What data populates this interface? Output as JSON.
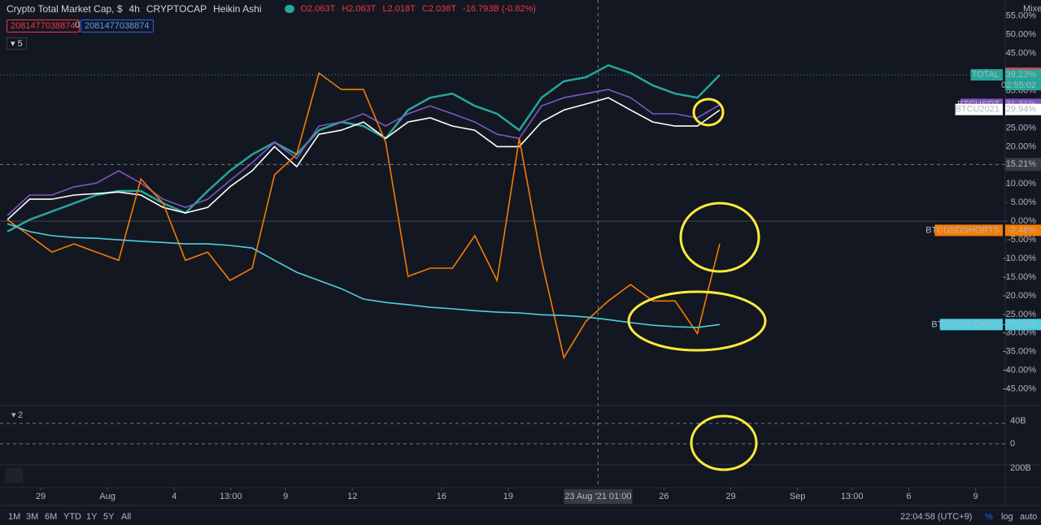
{
  "header": {
    "symbol": "Crypto Total Market Cap, $",
    "interval": "4h",
    "exchange": "CRYPTOCAP",
    "chart_style": "Heikin Ashi",
    "ohlc": [
      "O2.063T",
      "H2.063T",
      "L2.018T",
      "C2.038T"
    ],
    "change": "-16.793B (-0.82%)",
    "inputs": [
      "2081477038874",
      "0",
      "2081477038874"
    ],
    "indicator_count": "5",
    "scale_mode": "Mixed"
  },
  "chart_data": {
    "type": "line",
    "x": [
      -1.5,
      -0.5,
      0.5,
      1.5,
      2.5,
      3.5,
      4.5,
      5.5,
      6.5,
      7.5,
      8.5,
      9.5,
      10.5,
      11.5,
      12.5,
      13.5,
      14.5,
      15.5,
      16.5,
      17.5,
      18.5,
      19.5,
      20.5,
      21.5,
      22.5,
      23.5,
      24.5,
      25.5,
      26.5,
      27.5,
      28.5,
      29.5,
      30.5
    ],
    "xlim": [
      -1.83,
      43.33
    ],
    "xticks": [
      {
        "value": 0,
        "label": "29"
      },
      {
        "value": 3,
        "label": "Aug"
      },
      {
        "value": 6,
        "label": "4"
      },
      {
        "value": 8.54,
        "label": "13:00"
      },
      {
        "value": 11,
        "label": "9"
      },
      {
        "value": 14,
        "label": "12"
      },
      {
        "value": 18,
        "label": "16"
      },
      {
        "value": 21,
        "label": "19"
      },
      {
        "value": 28,
        "label": "26"
      },
      {
        "value": 31,
        "label": "29"
      },
      {
        "value": 34,
        "label": "Sep"
      },
      {
        "value": 36.45,
        "label": "13:00"
      },
      {
        "value": 39,
        "label": "6"
      },
      {
        "value": 42,
        "label": "9"
      }
    ],
    "crosshair_x": {
      "value": 25.04,
      "label": "23 Aug '21   01:00"
    },
    "crosshair_y": {
      "value": 15.21,
      "label": "15.21%"
    },
    "ylim": [
      -49,
      59.3
    ],
    "yticks": [
      {
        "value": 55,
        "label": "55.00%"
      },
      {
        "value": 50,
        "label": "50.00%"
      },
      {
        "value": 45,
        "label": "45.00%"
      },
      {
        "value": 40,
        "label": "40.00%"
      },
      {
        "value": 35,
        "label": "35.00%"
      },
      {
        "value": 30,
        "label": "30.00%"
      },
      {
        "value": 25,
        "label": "25.00%"
      },
      {
        "value": 20,
        "label": "20.00%"
      },
      {
        "value": 15,
        "label": "15.00%"
      },
      {
        "value": 10,
        "label": "10.00%"
      },
      {
        "value": 5,
        "label": "5.00%"
      },
      {
        "value": 0,
        "label": "0.00%"
      },
      {
        "value": -5,
        "label": "-5.00%"
      },
      {
        "value": -10,
        "label": "-10.00%"
      },
      {
        "value": -15,
        "label": "-15.00%"
      },
      {
        "value": -20,
        "label": "-20.00%"
      },
      {
        "value": -25,
        "label": "-25.00%"
      },
      {
        "value": -30,
        "label": "-30.00%"
      },
      {
        "value": -35,
        "label": "-35.00%"
      },
      {
        "value": -40,
        "label": "-40.00%"
      },
      {
        "value": -45,
        "label": "-45.00%"
      }
    ],
    "high_tag": {
      "value": 39.67,
      "label": "39.67%",
      "color": "#f23645"
    },
    "countdown": "02:55:02",
    "series": [
      {
        "name": "TOTAL",
        "color": "#26a69a",
        "tag": {
          "value": 39.23,
          "label": "39.23%"
        },
        "values": [
          -2.8,
          0.4,
          2.6,
          4.8,
          7.0,
          8.1,
          8.1,
          4.8,
          2.2,
          8.1,
          13.5,
          17.9,
          21.1,
          17.9,
          24.4,
          26.6,
          25.5,
          22.2,
          29.8,
          33.1,
          34.2,
          30.9,
          28.8,
          24.4,
          33.1,
          37.5,
          38.6,
          41.8,
          39.7,
          36.4,
          34.2,
          33.1,
          39.2
        ]
      },
      {
        "name": "BTCUSDT",
        "color": "#7e57c2",
        "tag": {
          "value": 31.31,
          "label": "31.31%"
        },
        "values": [
          1.5,
          7.0,
          7.0,
          9.2,
          10.2,
          13.5,
          10.2,
          5.9,
          3.7,
          5.9,
          10.9,
          15.7,
          21.1,
          16.8,
          25.5,
          26.6,
          28.8,
          25.5,
          28.8,
          30.9,
          28.8,
          26.6,
          23.3,
          22.2,
          30.9,
          33.1,
          34.2,
          35.3,
          33.1,
          28.8,
          28.8,
          27.7,
          31.2
        ]
      },
      {
        "name": "BTCU2021",
        "color": "#ffffff",
        "tag": {
          "value": 29.94,
          "label": "29.94%"
        },
        "values": [
          0.4,
          5.9,
          5.9,
          7.0,
          7.4,
          7.8,
          7.0,
          3.7,
          2.2,
          3.7,
          9.2,
          13.5,
          20.0,
          14.6,
          23.3,
          24.4,
          26.6,
          22.2,
          26.6,
          27.7,
          25.5,
          24.4,
          20.0,
          20.0,
          26.6,
          29.8,
          31.4,
          33.1,
          29.8,
          26.6,
          25.5,
          25.5,
          29.8
        ]
      },
      {
        "name": "BTCUSDSHORTS",
        "color": "#f57c00",
        "tag": {
          "value": -2.46,
          "label": "-2.46%"
        },
        "values": [
          0.4,
          -3.9,
          -8.3,
          -6.1,
          -8.3,
          -10.5,
          11.3,
          4.8,
          -10.5,
          -8.3,
          -15.9,
          -12.6,
          12.4,
          17.9,
          39.7,
          35.3,
          35.3,
          21.1,
          -14.8,
          -12.6,
          -12.6,
          -3.9,
          -15.9,
          22.2,
          -10.5,
          -36.6,
          -26.8,
          -21.4,
          -17.0,
          -21.4,
          -21.4,
          -30.1,
          -6.1
        ]
      },
      {
        "name": "BTCUSDLONGS",
        "color": "#4dd0e1",
        "tag": {
          "value": -27.72,
          "label": "-27.72%"
        },
        "values": [
          -0.7,
          -2.8,
          -3.9,
          -4.4,
          -4.6,
          -5.0,
          -5.4,
          -5.7,
          -6.1,
          -6.1,
          -6.5,
          -7.2,
          -10.5,
          -13.7,
          -15.9,
          -18.1,
          -20.9,
          -21.8,
          -22.4,
          -23.1,
          -23.5,
          -24.0,
          -24.4,
          -24.6,
          -25.1,
          -25.3,
          -25.7,
          -26.4,
          -27.2,
          -27.9,
          -28.3,
          -28.5,
          -27.7
        ]
      }
    ]
  },
  "oscillator": {
    "pane_count": "2",
    "yticks": [
      "40B",
      "0"
    ]
  },
  "volume": {
    "ytick": "200B"
  },
  "footer": {
    "ranges": [
      "1M",
      "3M",
      "6M",
      "YTD",
      "1Y",
      "5Y",
      "All"
    ],
    "clock": "22:04:58 (UTC+9)",
    "scale_buttons": [
      "%",
      "log",
      "auto"
    ]
  }
}
